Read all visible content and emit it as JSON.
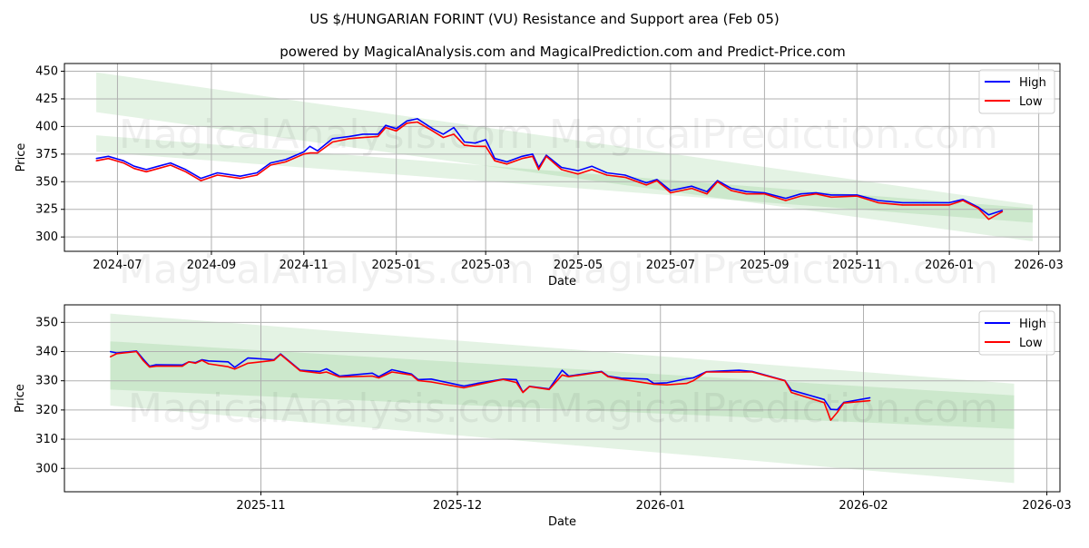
{
  "title": "US $/HUNGARIAN FORINT (VU) Resistance and Support area (Feb 05)",
  "subtitle": "powered by MagicalAnalysis.com and MagicalPrediction.com and Predict-Price.com",
  "watermarks": [
    "MagicalAnalysis.com",
    "MagicalPrediction.com"
  ],
  "colors": {
    "high": "#0000ff",
    "low": "#ff0000",
    "band": "#2ca02c"
  },
  "chart_data": [
    {
      "type": "line",
      "xlabel": "Date",
      "ylabel": "Price",
      "ylim": [
        287,
        457
      ],
      "xlim": [
        "2024-05-27",
        "2026-03-15"
      ],
      "yticks": [
        300,
        325,
        350,
        375,
        400,
        425,
        450
      ],
      "xticks": [
        "2024-07",
        "2024-09",
        "2024-11",
        "2025-01",
        "2025-03",
        "2025-05",
        "2025-07",
        "2025-09",
        "2025-11",
        "2026-01",
        "2026-03"
      ],
      "grid": true,
      "legend": {
        "position": "top-right",
        "entries": [
          "High",
          "Low"
        ]
      },
      "bands": [
        {
          "start": "2024-06-17",
          "end": "2026-02-25",
          "start_range": [
            413,
            449
          ],
          "end_range": [
            296,
            329
          ]
        },
        {
          "start": "2024-06-17",
          "end": "2026-02-25",
          "start_range": [
            377,
            392
          ],
          "end_range": [
            313,
            326
          ]
        }
      ],
      "series_points": [
        [
          "2024-06-17",
          371,
          369
        ],
        [
          "2024-06-25",
          373,
          371
        ],
        [
          "2024-07-05",
          369,
          367
        ],
        [
          "2024-07-12",
          364,
          362
        ],
        [
          "2024-07-20",
          361,
          359
        ],
        [
          "2024-07-28",
          364,
          362
        ],
        [
          "2024-08-05",
          367,
          365
        ],
        [
          "2024-08-15",
          361,
          359
        ],
        [
          "2024-08-25",
          353,
          351
        ],
        [
          "2024-09-05",
          358,
          356
        ],
        [
          "2024-09-20",
          355,
          353
        ],
        [
          "2024-10-01",
          358,
          356
        ],
        [
          "2024-10-10",
          367,
          365
        ],
        [
          "2024-10-20",
          370,
          368
        ],
        [
          "2024-11-01",
          377,
          375
        ],
        [
          "2024-11-05",
          382,
          376
        ],
        [
          "2024-11-10",
          378,
          376
        ],
        [
          "2024-11-20",
          389,
          386
        ],
        [
          "2024-12-01",
          391,
          389
        ],
        [
          "2024-12-10",
          393,
          390
        ],
        [
          "2024-12-20",
          393,
          391
        ],
        [
          "2024-12-25",
          401,
          399
        ],
        [
          "2025-01-01",
          398,
          396
        ],
        [
          "2025-01-08",
          405,
          403
        ],
        [
          "2025-01-15",
          407,
          404
        ],
        [
          "2025-01-25",
          398,
          396
        ],
        [
          "2025-02-01",
          393,
          390
        ],
        [
          "2025-02-08",
          399,
          393
        ],
        [
          "2025-02-15",
          386,
          383
        ],
        [
          "2025-02-22",
          385,
          382
        ],
        [
          "2025-03-01",
          388,
          382
        ],
        [
          "2025-03-07",
          371,
          369
        ],
        [
          "2025-03-15",
          368,
          366
        ],
        [
          "2025-03-25",
          373,
          371
        ],
        [
          "2025-04-01",
          375,
          373
        ],
        [
          "2025-04-05",
          363,
          361
        ],
        [
          "2025-04-10",
          374,
          373
        ],
        [
          "2025-04-20",
          363,
          361
        ],
        [
          "2025-05-01",
          360,
          357
        ],
        [
          "2025-05-10",
          364,
          361
        ],
        [
          "2025-05-20",
          358,
          356
        ],
        [
          "2025-06-01",
          356,
          354
        ],
        [
          "2025-06-15",
          349,
          347
        ],
        [
          "2025-06-22",
          352,
          351
        ],
        [
          "2025-07-01",
          342,
          340
        ],
        [
          "2025-07-15",
          346,
          344
        ],
        [
          "2025-07-25",
          341,
          339
        ],
        [
          "2025-08-01",
          351,
          350
        ],
        [
          "2025-08-10",
          344,
          342
        ],
        [
          "2025-08-20",
          341,
          339
        ],
        [
          "2025-09-01",
          340,
          339
        ],
        [
          "2025-09-15",
          335,
          333
        ],
        [
          "2025-09-25",
          339,
          337
        ],
        [
          "2025-10-05",
          340,
          339
        ],
        [
          "2025-10-15",
          338,
          336
        ],
        [
          "2025-11-01",
          338,
          337
        ],
        [
          "2025-11-15",
          333,
          331
        ],
        [
          "2025-12-01",
          331,
          329
        ],
        [
          "2025-12-15",
          331,
          329
        ],
        [
          "2026-01-01",
          331,
          329
        ],
        [
          "2026-01-10",
          334,
          333
        ],
        [
          "2026-01-20",
          327,
          326
        ],
        [
          "2026-01-27",
          320,
          316
        ],
        [
          "2026-02-05",
          324,
          323
        ]
      ],
      "series": [
        {
          "name": "High",
          "column": 1
        },
        {
          "name": "Low",
          "column": 2
        }
      ]
    },
    {
      "type": "line",
      "xlabel": "Date",
      "ylabel": "Price",
      "ylim": [
        292,
        356
      ],
      "xlim": [
        "2025-10-02",
        "2026-03-03"
      ],
      "yticks": [
        300,
        310,
        320,
        330,
        340,
        350
      ],
      "xticks": [
        "2025-11",
        "2025-12",
        "2026-01",
        "2026-02",
        "2026-03"
      ],
      "grid": true,
      "legend": {
        "position": "top-right",
        "entries": [
          "High",
          "Low"
        ]
      },
      "bands": [
        {
          "start": "2025-10-09",
          "end": "2026-02-24",
          "start_range": [
            321.5,
            353
          ],
          "end_range": [
            295,
            329
          ]
        },
        {
          "start": "2025-10-09",
          "end": "2026-02-24",
          "start_range": [
            327,
            343.5
          ],
          "end_range": [
            313.5,
            325
          ]
        }
      ],
      "series_points": [
        [
          "2025-10-09",
          340,
          338.2
        ],
        [
          "2025-10-10",
          339.5,
          339.3
        ],
        [
          "2025-10-13",
          340.2,
          340
        ],
        [
          "2025-10-14",
          337.5,
          337
        ],
        [
          "2025-10-15",
          335,
          334.7
        ],
        [
          "2025-10-16",
          335.5,
          335
        ],
        [
          "2025-10-20",
          335.4,
          335
        ],
        [
          "2025-10-21",
          336.5,
          336.5
        ],
        [
          "2025-10-22",
          336.2,
          336
        ],
        [
          "2025-10-23",
          337.2,
          337
        ],
        [
          "2025-10-24",
          336.8,
          335.8
        ],
        [
          "2025-10-27",
          336.5,
          334.8
        ],
        [
          "2025-10-28",
          334.6,
          334
        ],
        [
          "2025-10-30",
          337.8,
          336
        ],
        [
          "2025-11-03",
          337.2,
          337
        ],
        [
          "2025-11-04",
          339.2,
          339
        ],
        [
          "2025-11-07",
          333.6,
          333.4
        ],
        [
          "2025-11-10",
          333.2,
          332.6
        ],
        [
          "2025-11-11",
          334.1,
          333
        ],
        [
          "2025-11-13",
          331.6,
          331.3
        ],
        [
          "2025-11-18",
          332.6,
          331.6
        ],
        [
          "2025-11-19",
          331.4,
          331
        ],
        [
          "2025-11-21",
          333.8,
          333
        ],
        [
          "2025-11-24",
          332.3,
          332
        ],
        [
          "2025-11-25",
          330.4,
          330.1
        ],
        [
          "2025-11-27",
          330.6,
          329.6
        ],
        [
          "2025-12-02",
          328.2,
          327.6
        ],
        [
          "2025-12-04",
          329.1,
          328.6
        ],
        [
          "2025-12-08",
          330.6,
          330.5
        ],
        [
          "2025-12-10",
          330.4,
          329.4
        ],
        [
          "2025-12-11",
          326.1,
          326
        ],
        [
          "2025-12-12",
          328.1,
          328
        ],
        [
          "2025-12-15",
          327.2,
          327
        ],
        [
          "2025-12-17",
          333.6,
          332
        ],
        [
          "2025-12-18",
          331.6,
          331.4
        ],
        [
          "2025-12-23",
          333.2,
          333
        ],
        [
          "2025-12-24",
          331.6,
          331.4
        ],
        [
          "2025-12-26",
          330.9,
          330.5
        ],
        [
          "2025-12-30",
          330.6,
          329.2
        ],
        [
          "2025-12-31",
          329.1,
          328.8
        ],
        [
          "2026-01-02",
          329.3,
          328.6
        ],
        [
          "2026-01-05",
          330.7,
          329.1
        ],
        [
          "2026-01-06",
          331,
          330
        ],
        [
          "2026-01-08",
          333.1,
          333
        ],
        [
          "2026-01-13",
          333.6,
          333
        ],
        [
          "2026-01-15",
          333.2,
          333
        ],
        [
          "2026-01-20",
          330.1,
          330
        ],
        [
          "2026-01-21",
          326.8,
          326
        ],
        [
          "2026-01-26",
          323.6,
          322.5
        ],
        [
          "2026-01-27",
          320.2,
          316.5
        ],
        [
          "2026-01-28",
          320.1,
          319.2
        ],
        [
          "2026-01-29",
          322.6,
          322.4
        ],
        [
          "2026-02-02",
          324.2,
          323.2
        ]
      ],
      "series": [
        {
          "name": "High",
          "column": 1
        },
        {
          "name": "Low",
          "column": 2
        }
      ]
    }
  ]
}
